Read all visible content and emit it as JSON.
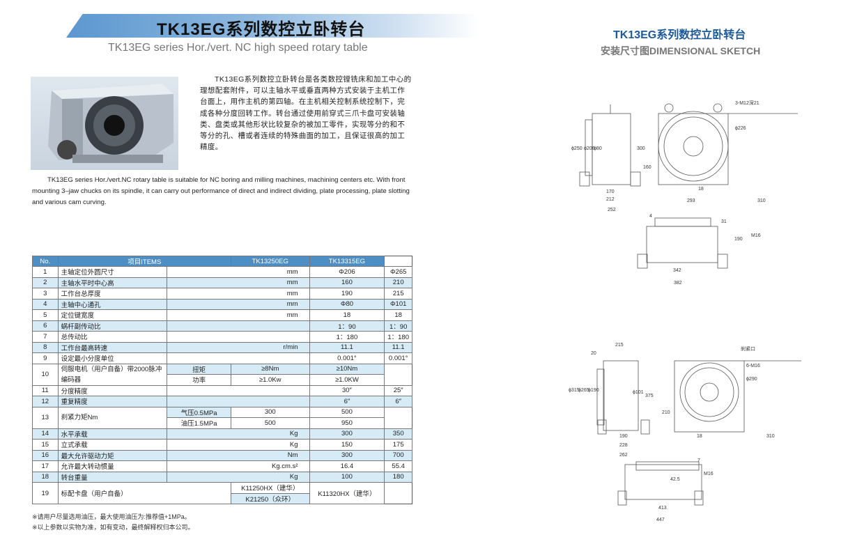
{
  "header": {
    "title": "TK13EG系列数控立卧转台",
    "subtitle": "TK13EG series Hor./vert. NC high speed rotary table"
  },
  "right_header": {
    "title": "TK13EG系列数控立卧转台",
    "subtitle": "安装尺寸图DIMENSIONAL SKETCH"
  },
  "description_cn": "TK13EG系列数控立卧转台是各类数控镗铣床和加工中心的理想配套附件，可以主轴水平或垂直两种方式安装于主机工作台面上，用作主机的第四轴。在主机相关控制系统控制下，完成各种分度回转工作。转台通过使用前穿式三爪卡盘可安装轴类、盘类或其他形状比较复杂的被加工零件，实现等分的和不等分的孔、槽或者连续的特殊曲面的加工，且保证很高的加工精度。",
  "description_en": "TK13EG series Hor./vert.NC rotary table is suitable for NC boring and milling machines, machining centers etc. With front mounting 3–jaw chucks on its spindle, it can carry out performance of direct and indirect dividing, plate processing, plate slotting and various cam curving.",
  "table": {
    "headers": [
      "No.",
      "项目ITEMS",
      "TK13250EG",
      "TK13315EG"
    ],
    "rows": [
      {
        "no": "1",
        "item": "主轴定位外圆尺寸",
        "unit": "mm",
        "a": "Φ206",
        "b": "Φ265"
      },
      {
        "no": "2",
        "item": "主轴水平时中心高",
        "unit": "mm",
        "a": "160",
        "b": "210"
      },
      {
        "no": "3",
        "item": "工作台总厚度",
        "unit": "mm",
        "a": "190",
        "b": "215"
      },
      {
        "no": "4",
        "item": "主轴中心通孔",
        "unit": "mm",
        "a": "Φ80",
        "b": "Φ101"
      },
      {
        "no": "5",
        "item": "定位键宽度",
        "unit": "mm",
        "a": "18",
        "b": "18"
      },
      {
        "no": "6",
        "item": "蜗杆副传动比",
        "unit": "",
        "a": "1：90",
        "b": "1：90"
      },
      {
        "no": "7",
        "item": "总传动比",
        "unit": "",
        "a": "1：180",
        "b": "1：180"
      },
      {
        "no": "8",
        "item": "工作台最高转速",
        "unit": "r/min",
        "a": "11.1",
        "b": "11.1"
      },
      {
        "no": "9",
        "item": "设定最小分度单位",
        "unit": "",
        "a": "0.001°",
        "b": "0.001°"
      },
      {
        "no": "10",
        "item": "伺服电机（用户自备）带2000脉冲编码器",
        "sub": [
          {
            "label": "扭矩",
            "a": "≥8Nm",
            "b": "≥10Nm"
          },
          {
            "label": "功率",
            "a": "≥1.0Kw",
            "b": "≥1.0KW"
          }
        ]
      },
      {
        "no": "11",
        "item": "分度精度",
        "unit": "",
        "a": "30″",
        "b": "25″"
      },
      {
        "no": "12",
        "item": "重复精度",
        "unit": "",
        "a": "6″",
        "b": "6″"
      },
      {
        "no": "13",
        "item": "刹紧力矩Nm",
        "sub": [
          {
            "label": "气压0.5MPa",
            "a": "300",
            "b": "500"
          },
          {
            "label": "油压1.5MPa",
            "a": "500",
            "b": "950"
          }
        ]
      },
      {
        "no": "14",
        "item": "水平承载",
        "unit": "Kg",
        "a": "300",
        "b": "350"
      },
      {
        "no": "15",
        "item": "立式承载",
        "unit": "Kg",
        "a": "150",
        "b": "175"
      },
      {
        "no": "16",
        "item": "最大允许驱动力矩",
        "unit": "Nm",
        "a": "300",
        "b": "700"
      },
      {
        "no": "17",
        "item": "允许最大转动惯量",
        "unit": "Kg.cm.s²",
        "a": "16.4",
        "b": "55.4"
      },
      {
        "no": "18",
        "item": "转台重量",
        "unit": "Kg",
        "a": "100",
        "b": "180"
      },
      {
        "no": "19",
        "item": "标配卡盘（用户自备）",
        "a_list": [
          "K11250HX（建华）",
          "K21250（众环）"
        ],
        "b": "K11320HX（建华）"
      }
    ]
  },
  "notes": [
    "※请用户尽量选用油压，最大使用油压为:推荐值+1MPa。",
    "※以上参数以实物为准，如有变动，最终解释权归本公司。"
  ],
  "drawings": {
    "top": [
      "3-M12深21",
      "ϕ226",
      "ϕ250",
      "ϕ206",
      "ϕ80",
      "300",
      "160",
      "170",
      "212",
      "252",
      "18",
      "293",
      "310",
      "4",
      "31",
      "190",
      "M16",
      "342",
      "382"
    ],
    "bottom": [
      "215",
      "20",
      "刹紧口",
      "6-M16",
      "ϕ290",
      "ϕ315",
      "ϕ265",
      "ϕ190",
      "ϕ101",
      "375",
      "210",
      "190",
      "228",
      "262",
      "18",
      "310",
      "7",
      "42.5",
      "M16",
      "413",
      "447"
    ]
  }
}
